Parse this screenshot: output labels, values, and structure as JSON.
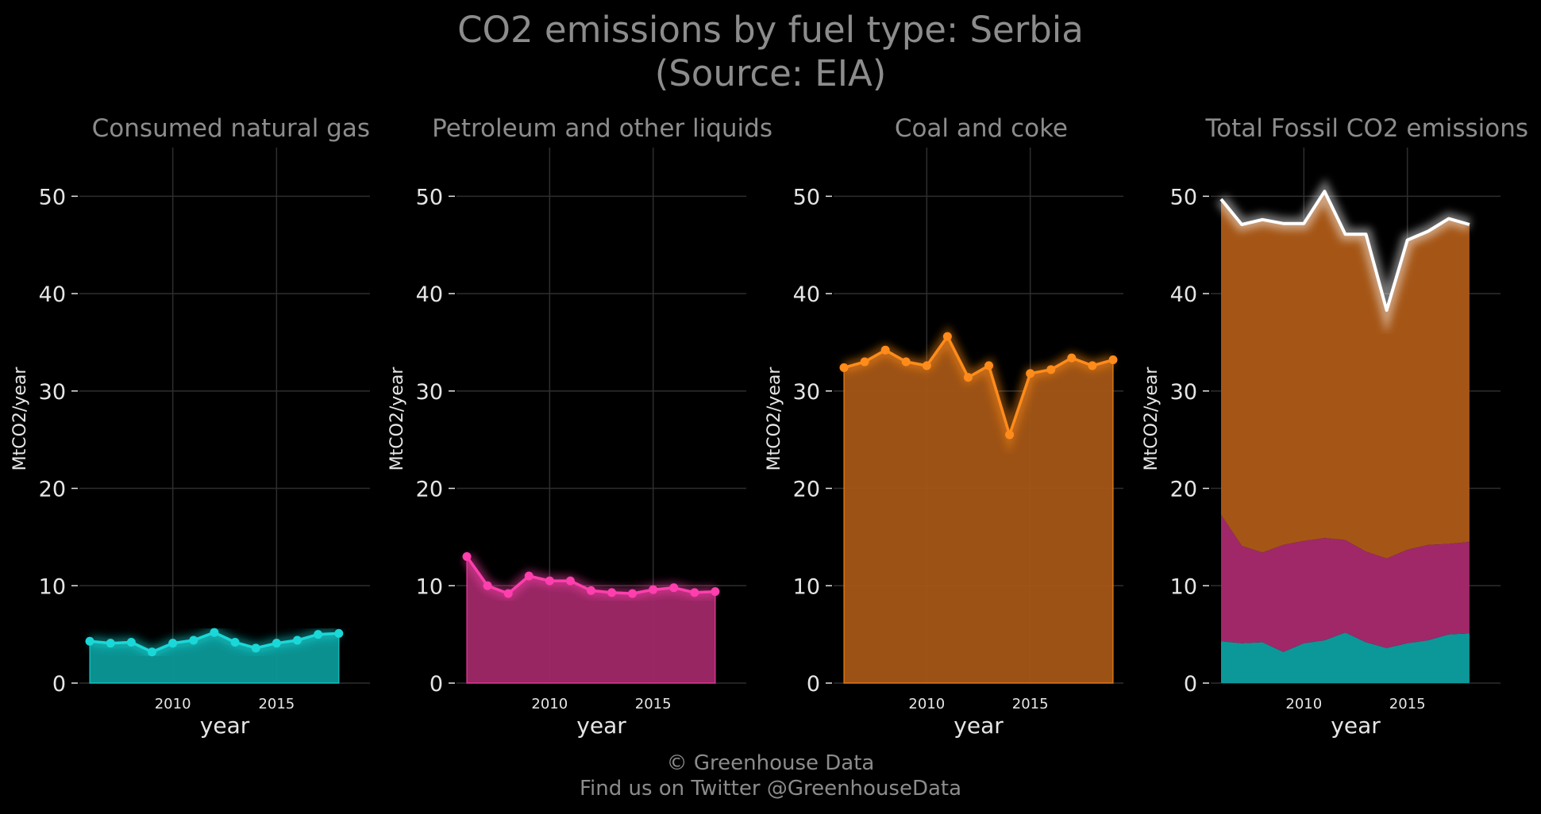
{
  "title_line1": "CO2 emissions by fuel type: Serbia",
  "title_line2": "(Source: EIA)",
  "footer_line1": "© Greenhouse Data",
  "footer_line2": "Find us on Twitter @GreenhouseData",
  "colors": {
    "gas": "#1ad8d8",
    "gas_fill": "#0c9898",
    "petroleum": "#ff3fae",
    "petroleum_fill": "#a02868",
    "coal": "#ff8c1a",
    "coal_fill": "#a55616",
    "total": "#ffffff",
    "grid": "#2e2e2e",
    "tick_text": "#e6e6e6",
    "panel_title": "#8c8c8c"
  },
  "chart_data": [
    {
      "type": "area",
      "title": "Consumed natural gas",
      "xlabel": "year",
      "ylabel": "MtCO2/year",
      "ylim": [
        0,
        55
      ],
      "yticks": [
        0,
        10,
        20,
        30,
        40,
        50
      ],
      "xticks": [
        2010,
        2015
      ],
      "grid": true,
      "series": [
        {
          "key": "gas",
          "x": [
            2006,
            2007,
            2008,
            2009,
            2010,
            2011,
            2012,
            2013,
            2014,
            2015,
            2016,
            2017,
            2018
          ],
          "values": [
            4.3,
            4.1,
            4.2,
            3.2,
            4.1,
            4.4,
            5.2,
            4.2,
            3.6,
            4.1,
            4.4,
            5.0,
            5.1
          ]
        }
      ]
    },
    {
      "type": "area",
      "title": "Petroleum and other liquids",
      "xlabel": "year",
      "ylabel": "MtCO2/year",
      "ylim": [
        0,
        55
      ],
      "yticks": [
        0,
        10,
        20,
        30,
        40,
        50
      ],
      "xticks": [
        2010,
        2015
      ],
      "grid": true,
      "series": [
        {
          "key": "petroleum",
          "x": [
            2006,
            2007,
            2008,
            2009,
            2010,
            2011,
            2012,
            2013,
            2014,
            2015,
            2016,
            2017,
            2018
          ],
          "values": [
            13.0,
            10.0,
            9.2,
            11.0,
            10.5,
            10.5,
            9.5,
            9.3,
            9.2,
            9.6,
            9.8,
            9.3,
            9.4
          ]
        }
      ]
    },
    {
      "type": "area",
      "title": "Coal and coke",
      "xlabel": "year",
      "ylabel": "MtCO2/year",
      "ylim": [
        0,
        55
      ],
      "yticks": [
        0,
        10,
        20,
        30,
        40,
        50
      ],
      "xticks": [
        2010,
        2015
      ],
      "grid": true,
      "series": [
        {
          "key": "coal",
          "x": [
            2006,
            2007,
            2008,
            2009,
            2010,
            2011,
            2012,
            2013,
            2014,
            2015,
            2016,
            2017,
            2018,
            2019
          ],
          "values": [
            32.4,
            33.0,
            34.2,
            33.0,
            32.6,
            35.6,
            31.4,
            32.6,
            25.5,
            31.8,
            32.2,
            33.4,
            32.6,
            33.2
          ]
        }
      ]
    },
    {
      "type": "area",
      "title": "Total Fossil CO2 emissions",
      "xlabel": "year",
      "ylabel": "MtCO2/year",
      "ylim": [
        0,
        55
      ],
      "yticks": [
        0,
        10,
        20,
        30,
        40,
        50
      ],
      "xticks": [
        2010,
        2015
      ],
      "grid": true,
      "stacked": true,
      "x": [
        2006,
        2007,
        2008,
        2009,
        2010,
        2011,
        2012,
        2013,
        2014,
        2015,
        2016,
        2017,
        2018
      ],
      "layers": [
        {
          "key": "gas",
          "values": [
            4.3,
            4.1,
            4.2,
            3.2,
            4.1,
            4.4,
            5.2,
            4.2,
            3.6,
            4.1,
            4.4,
            5.0,
            5.1
          ]
        },
        {
          "key": "petroleum",
          "values": [
            13.0,
            10.0,
            9.2,
            11.0,
            10.5,
            10.5,
            9.5,
            9.3,
            9.2,
            9.6,
            9.8,
            9.3,
            9.4
          ]
        },
        {
          "key": "coal",
          "values": [
            32.4,
            33.0,
            34.2,
            33.0,
            32.6,
            35.6,
            31.4,
            32.6,
            25.5,
            31.8,
            32.2,
            33.4,
            32.6
          ]
        }
      ],
      "total": [
        49.7,
        47.1,
        47.6,
        47.2,
        47.2,
        50.5,
        46.1,
        46.1,
        38.3,
        45.5,
        46.4,
        47.7,
        47.1
      ]
    }
  ]
}
